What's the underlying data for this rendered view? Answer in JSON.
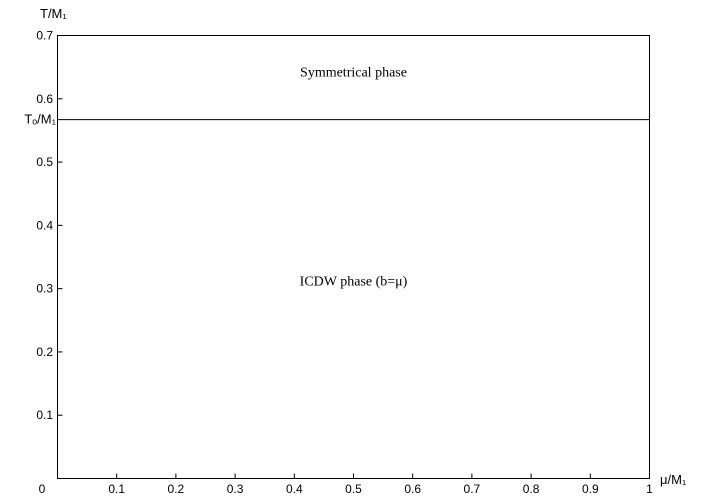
{
  "chart_data": {
    "type": "line",
    "title": "",
    "xlabel": "μ/M₁",
    "ylabel": "T/M₁",
    "xlim": [
      0,
      1
    ],
    "ylim": [
      0,
      0.7
    ],
    "x_ticks": [
      0,
      0.1,
      0.2,
      0.3,
      0.4,
      0.5,
      0.6,
      0.7,
      0.8,
      0.9,
      1
    ],
    "x_tick_labels": [
      "0",
      "0.1",
      "0.2",
      "0.3",
      "0.4",
      "0.5",
      "0.6",
      "0.7",
      "0.8",
      "0.9",
      "1"
    ],
    "y_ticks": [
      0.1,
      0.2,
      0.3,
      0.4,
      0.5,
      0.6,
      0.7
    ],
    "y_tick_labels": [
      "0.1",
      "0.2",
      "0.3",
      "0.4",
      "0.5",
      "0.6",
      "0.7"
    ],
    "grid": false,
    "series": [
      {
        "x": [
          0,
          1
        ],
        "y": [
          0.567,
          0.567
        ]
      }
    ],
    "critical_line": {
      "value": 0.567,
      "label": "Tₒ/M₁"
    },
    "annotations": [
      {
        "text": "Symmetrical phase",
        "x": 0.5,
        "y": 0.635
      },
      {
        "text": "ICDW phase  (b=μ)",
        "x": 0.5,
        "y": 0.305
      }
    ]
  }
}
